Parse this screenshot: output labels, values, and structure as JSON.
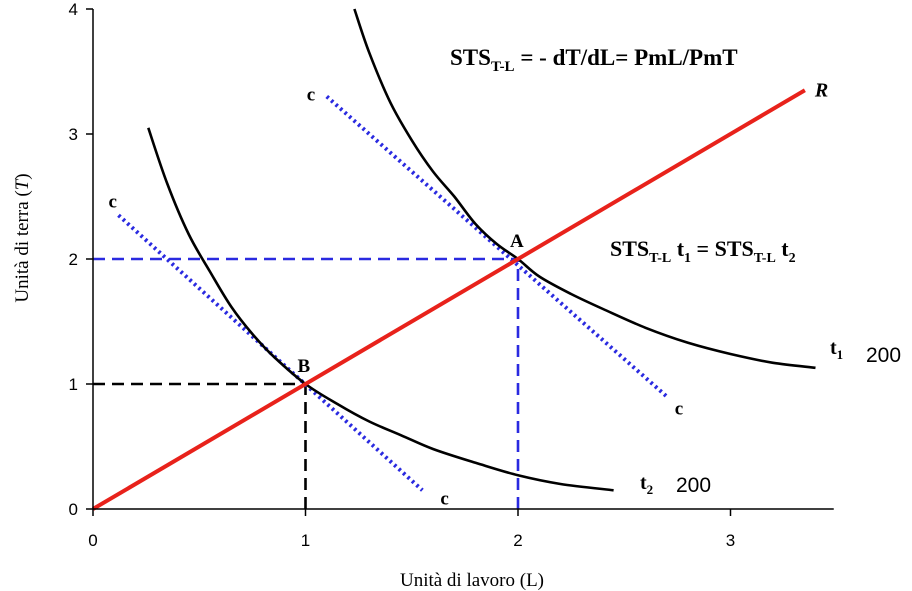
{
  "chart_data": {
    "type": "line",
    "xlabel": "Unità di lavoro (L)",
    "ylabel_main": "Unità di terra (",
    "ylabel_var": "T",
    "ylabel_close": ")",
    "xlim": [
      0,
      3.5
    ],
    "ylim": [
      0,
      4
    ],
    "x_ticks": [
      0,
      1,
      2,
      3
    ],
    "y_ticks": [
      0,
      1,
      2,
      3,
      4
    ],
    "grid": false,
    "series": [
      {
        "name": "t1",
        "kind": "isoquant",
        "color": "#000000",
        "points": [
          [
            1.23,
            4.0
          ],
          [
            1.3,
            3.65
          ],
          [
            1.4,
            3.25
          ],
          [
            1.5,
            2.95
          ],
          [
            1.6,
            2.7
          ],
          [
            1.7,
            2.5
          ],
          [
            1.8,
            2.28
          ],
          [
            1.9,
            2.12
          ],
          [
            2.0,
            2.0
          ],
          [
            2.1,
            1.86
          ],
          [
            2.25,
            1.72
          ],
          [
            2.4,
            1.6
          ],
          [
            2.6,
            1.45
          ],
          [
            2.8,
            1.33
          ],
          [
            3.0,
            1.24
          ],
          [
            3.2,
            1.17
          ],
          [
            3.4,
            1.13
          ]
        ],
        "label_text": "t",
        "label_sub": "1",
        "value_label": "200"
      },
      {
        "name": "t2",
        "kind": "isoquant",
        "color": "#000000",
        "points": [
          [
            0.26,
            3.05
          ],
          [
            0.35,
            2.6
          ],
          [
            0.45,
            2.2
          ],
          [
            0.55,
            1.9
          ],
          [
            0.65,
            1.62
          ],
          [
            0.75,
            1.4
          ],
          [
            0.85,
            1.22
          ],
          [
            1.0,
            1.0
          ],
          [
            1.15,
            0.84
          ],
          [
            1.3,
            0.7
          ],
          [
            1.45,
            0.59
          ],
          [
            1.6,
            0.48
          ],
          [
            1.8,
            0.37
          ],
          [
            2.0,
            0.27
          ],
          [
            2.2,
            0.2
          ],
          [
            2.45,
            0.15
          ]
        ],
        "label_text": "t",
        "label_sub": "2",
        "value_label": "200"
      },
      {
        "name": "R",
        "kind": "ray",
        "color": "#e8221b",
        "points": [
          [
            0,
            0
          ],
          [
            3.35,
            3.35
          ]
        ],
        "label": "R"
      },
      {
        "name": "cA",
        "kind": "tangent",
        "color": "#2a2ae0",
        "points": [
          [
            1.1,
            3.3
          ],
          [
            2.7,
            0.9
          ]
        ],
        "label_start": "c",
        "label_end": "c"
      },
      {
        "name": "cB",
        "kind": "tangent",
        "color": "#2a2ae0",
        "points": [
          [
            0.12,
            2.35
          ],
          [
            1.55,
            0.15
          ]
        ],
        "label_start": "c",
        "label_end": "c"
      }
    ],
    "reference_lines": [
      {
        "color": "#2a2ae0",
        "from": [
          0,
          2
        ],
        "to": [
          2,
          2
        ]
      },
      {
        "color": "#2a2ae0",
        "from": [
          2,
          0
        ],
        "to": [
          2,
          2
        ]
      },
      {
        "color": "#000000",
        "from": [
          0,
          1
        ],
        "to": [
          1,
          1
        ]
      },
      {
        "color": "#000000",
        "from": [
          1,
          0
        ],
        "to": [
          1,
          1
        ]
      }
    ],
    "points": [
      {
        "label": "A",
        "x": 2,
        "y": 2,
        "color": "#2a2ae0"
      },
      {
        "label": "B",
        "x": 1,
        "y": 1,
        "color": "#000000"
      }
    ],
    "annotations": {
      "formula1": {
        "pre": "STS",
        "sub": "T-L",
        "post": " = - dT/dL= PmL/PmT"
      },
      "formula2": {
        "p1": "STS",
        "s1": "T-L",
        "p2": " t",
        "s2": "1",
        "p3": " = STS",
        "s3": "T-L",
        "p4": " t",
        "s4": "2"
      }
    }
  }
}
